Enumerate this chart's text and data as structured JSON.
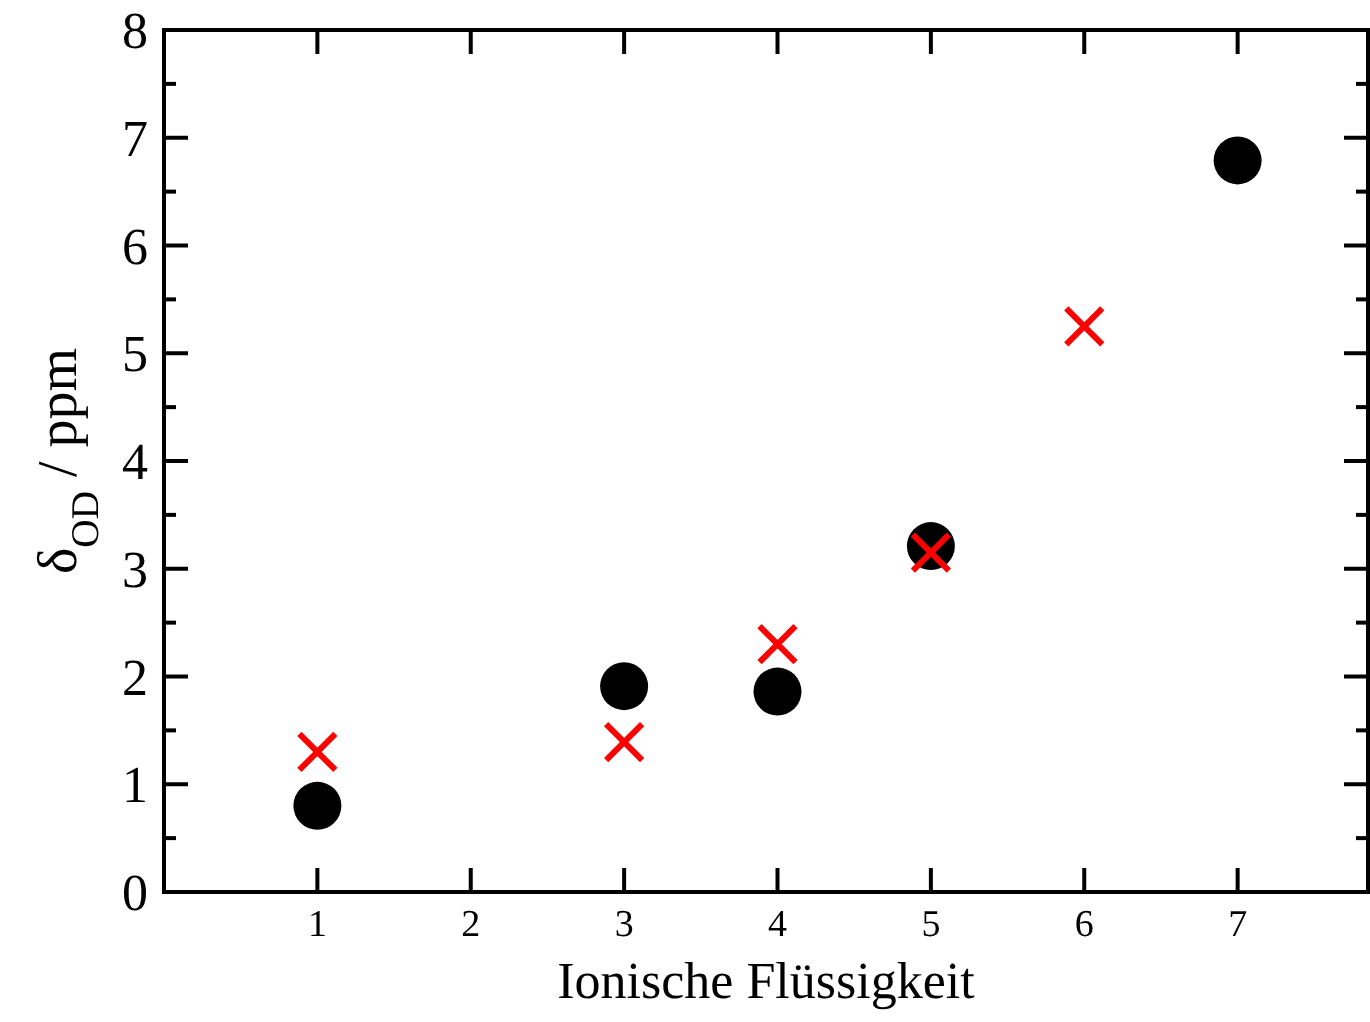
{
  "chart_data": {
    "type": "scatter",
    "xlabel": "Ionische Flüssigkeit",
    "ylabel": "δ$_{OD}$ / ppm",
    "xlim": [
      0,
      7.85
    ],
    "xticks": [
      1,
      2,
      3,
      4,
      5,
      6,
      7
    ],
    "ylim": [
      0,
      8
    ],
    "yticks": [
      0,
      {
        "value": 0.5,
        "label": null
      },
      1,
      {
        "value": 1.5,
        "label": null
      },
      2,
      {
        "value": 2.5,
        "label": null
      },
      3,
      {
        "value": 3.5,
        "label": null
      },
      4,
      {
        "value": 4.5,
        "label": null
      },
      5,
      {
        "value": 5.5,
        "label": null
      },
      6,
      {
        "value": 6.5,
        "label": null
      },
      7,
      {
        "value": 7.5,
        "label": null
      },
      8
    ],
    "grid": false,
    "series": [
      {
        "color": "#000000",
        "marker": "circle",
        "x": [
          1,
          3,
          4,
          5,
          7
        ],
        "values": [
          0.8,
          1.91,
          1.86,
          3.21,
          6.79
        ]
      },
      {
        "color": "#ff0000",
        "marker": "cross",
        "x": [
          1,
          3,
          4,
          5,
          6
        ],
        "values": [
          1.3,
          1.39,
          2.3,
          3.15,
          5.25
        ]
      }
    ]
  }
}
